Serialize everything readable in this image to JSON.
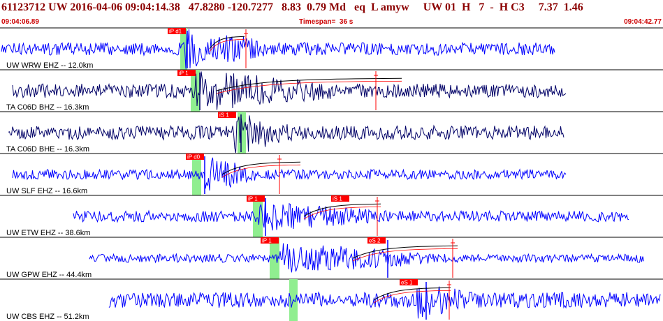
{
  "header": {
    "event_line": "61123712 UW 2016-04-06 09:04:14.38   47.8280 -120.7277   8.83  0.79 Md   eq  L amyw     UW 01  H   7  -  H C3     7.37  1.46",
    "start_time": "09:04:06.89",
    "timespan": "Timespan=  36 s",
    "end_time": "09:04:42.77"
  },
  "colors": {
    "header_text": "#8b0000",
    "subline_text": "#cc0000",
    "trace_blue": "#0000ff",
    "trace_navy": "#000066",
    "pick_window": "#90ee90",
    "phase_tag_bg": "#ff0000",
    "pick_line": "#ff0000",
    "separator": "#000000"
  },
  "panels": [
    {
      "label": "UW WRW EHZ -- 12.0km",
      "color": "blue",
      "amp": 9,
      "burst_amp": 30,
      "span": [
        2,
        795
      ],
      "onset": 265,
      "burst_end": 380,
      "window": [
        258,
        268
      ],
      "phases": [
        {
          "tag": "iP d1",
          "x": 240
        }
      ],
      "pick_lines": [
        {
          "x": 352
        }
      ],
      "curve": {
        "from": 300,
        "to": 350
      },
      "outlier_x": 268
    },
    {
      "label": "TA C06D BHZ -- 16.3km",
      "color": "navy",
      "amp": 10,
      "burst_amp": 28,
      "span": [
        18,
        810
      ],
      "onset": 280,
      "burst_end": 480,
      "window": [
        273,
        286
      ],
      "phases": [
        {
          "tag": "iP 1",
          "x": 254
        }
      ],
      "pick_lines": [
        {
          "x": 538
        }
      ],
      "curve": {
        "from": 310,
        "to": 575
      },
      "outlier_x": 286
    },
    {
      "label": "TA C06D BHE -- 16.3km",
      "color": "navy",
      "amp": 10,
      "burst_amp": 30,
      "span": [
        12,
        808
      ],
      "onset": 335,
      "burst_end": 420,
      "window": [
        340,
        352
      ],
      "phases": [
        {
          "tag": "iS 1",
          "x": 312
        }
      ],
      "pick_lines": [],
      "curve": null,
      "outlier_x": 345
    },
    {
      "label": "UW SLF EHZ -- 16.6km",
      "color": "blue",
      "amp": 7,
      "burst_amp": 26,
      "span": [
        18,
        810
      ],
      "onset": 290,
      "burst_end": 370,
      "window": [
        275,
        288
      ],
      "phases": [
        {
          "tag": "iP d0",
          "x": 266
        }
      ],
      "pick_lines": [
        {
          "x": 400
        }
      ],
      "curve": {
        "from": 318,
        "to": 430
      },
      "outlier_x": 293
    },
    {
      "label": "UW ETW EHZ -- 38.6km",
      "color": "blue",
      "amp": 8,
      "burst_amp": 20,
      "span": [
        105,
        900
      ],
      "onset": 370,
      "burst_end": 560,
      "window": [
        362,
        376
      ],
      "phases": [
        {
          "tag": "iP 1",
          "x": 353
        },
        {
          "tag": "iS 1",
          "x": 474
        }
      ],
      "pick_lines": [
        {
          "x": 540
        }
      ],
      "curve": {
        "from": 435,
        "to": 545
      },
      "outlier_x": 380
    },
    {
      "label": "UW GPW EHZ -- 44.4km",
      "color": "blue",
      "amp": 6,
      "burst_amp": 22,
      "span": [
        128,
        922
      ],
      "onset": 395,
      "burst_end": 620,
      "window": [
        386,
        400
      ],
      "phases": [
        {
          "tag": "iP 1",
          "x": 373
        },
        {
          "tag": "eS 2",
          "x": 526
        }
      ],
      "pick_lines": [
        {
          "x": 648
        }
      ],
      "curve": {
        "from": 505,
        "to": 655
      },
      "outlier_x": 555
    },
    {
      "label": "UW CBS EHZ -- 51.2km",
      "color": "blue",
      "amp": 11,
      "burst_amp": 24,
      "span": [
        156,
        945
      ],
      "onset": 595,
      "burst_end": 680,
      "window": [
        414,
        426
      ],
      "phases": [
        {
          "tag": "eS 1",
          "x": 572
        }
      ],
      "pick_lines": [
        {
          "x": 643
        }
      ],
      "curve": {
        "from": 535,
        "to": 645
      },
      "outlier_x": 610
    }
  ]
}
